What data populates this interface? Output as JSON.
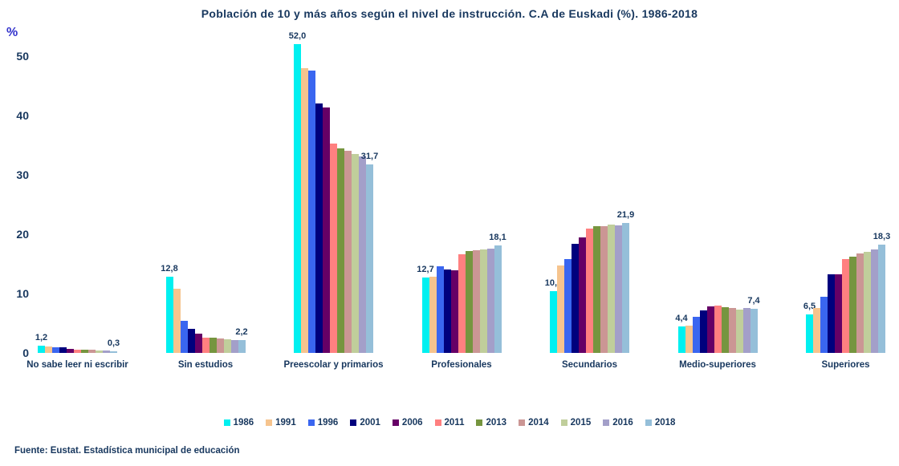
{
  "title": "Población  de 10 y más  años  según  el nivel  de instrucción.  C.A de Euskadi  (%). 1986-2018",
  "y_axis": {
    "unit_label": "%",
    "ticks": [
      0,
      10,
      20,
      30,
      40,
      50
    ],
    "max_value": 52
  },
  "footer": {
    "source": "Fuente: Eustat.  Estadística  municipal  de educación"
  },
  "chart_data": {
    "type": "bar",
    "title": "Población de 10 y más años según el nivel de instrucción. C.A de Euskadi (%). 1986-2018",
    "xlabel": "",
    "ylabel": "%",
    "ylim": [
      0,
      52
    ],
    "grid": false,
    "legend_position": "bottom",
    "categories": [
      "No sabe leer ni escribir",
      "Sin estudios",
      "Preescolar y primarios",
      "Profesionales",
      "Secundarios",
      "Medio-superiores",
      "Superiores"
    ],
    "series": [
      {
        "name": "1986",
        "color": "#00F0F0",
        "values": [
          1.2,
          12.8,
          52.0,
          12.7,
          10.4,
          4.4,
          6.5
        ],
        "labels": [
          "1,2",
          "12,8",
          "52,0",
          "12,7",
          "10,4",
          "4,4",
          "6,5"
        ]
      },
      {
        "name": "1991",
        "color": "#F6C48E",
        "values": [
          1.1,
          10.8,
          47.9,
          12.8,
          14.7,
          4.6,
          7.5
        ]
      },
      {
        "name": "1996",
        "color": "#3A66F0",
        "values": [
          0.9,
          5.4,
          47.5,
          14.6,
          15.8,
          6.1,
          9.5
        ]
      },
      {
        "name": "2001",
        "color": "#00007D",
        "values": [
          1.0,
          4.1,
          42.0,
          14.0,
          18.4,
          7.2,
          13.2
        ]
      },
      {
        "name": "2006",
        "color": "#660066",
        "values": [
          0.7,
          3.2,
          41.3,
          13.9,
          19.4,
          7.8,
          13.3
        ]
      },
      {
        "name": "2011",
        "color": "#FF8080",
        "values": [
          0.6,
          2.6,
          35.2,
          16.6,
          20.9,
          8.0,
          15.8
        ]
      },
      {
        "name": "2013",
        "color": "#76953F",
        "values": [
          0.5,
          2.5,
          34.5,
          17.1,
          21.4,
          7.7,
          16.2
        ]
      },
      {
        "name": "2014",
        "color": "#CB9694",
        "values": [
          0.5,
          2.4,
          34.0,
          17.3,
          21.3,
          7.6,
          16.7
        ]
      },
      {
        "name": "2015",
        "color": "#C0CE9B",
        "values": [
          0.4,
          2.3,
          33.5,
          17.4,
          21.6,
          7.3,
          17.0
        ]
      },
      {
        "name": "2016",
        "color": "#A39FC9",
        "values": [
          0.4,
          2.2,
          33.1,
          17.6,
          21.5,
          7.5,
          17.4
        ]
      },
      {
        "name": "2018",
        "color": "#95BFD9",
        "values": [
          0.3,
          2.2,
          31.7,
          18.1,
          21.9,
          7.4,
          18.3
        ],
        "labels": [
          "0,3",
          "2,2",
          "31,7",
          "18,1",
          "21,9",
          "7,4",
          "18,3"
        ]
      }
    ]
  }
}
